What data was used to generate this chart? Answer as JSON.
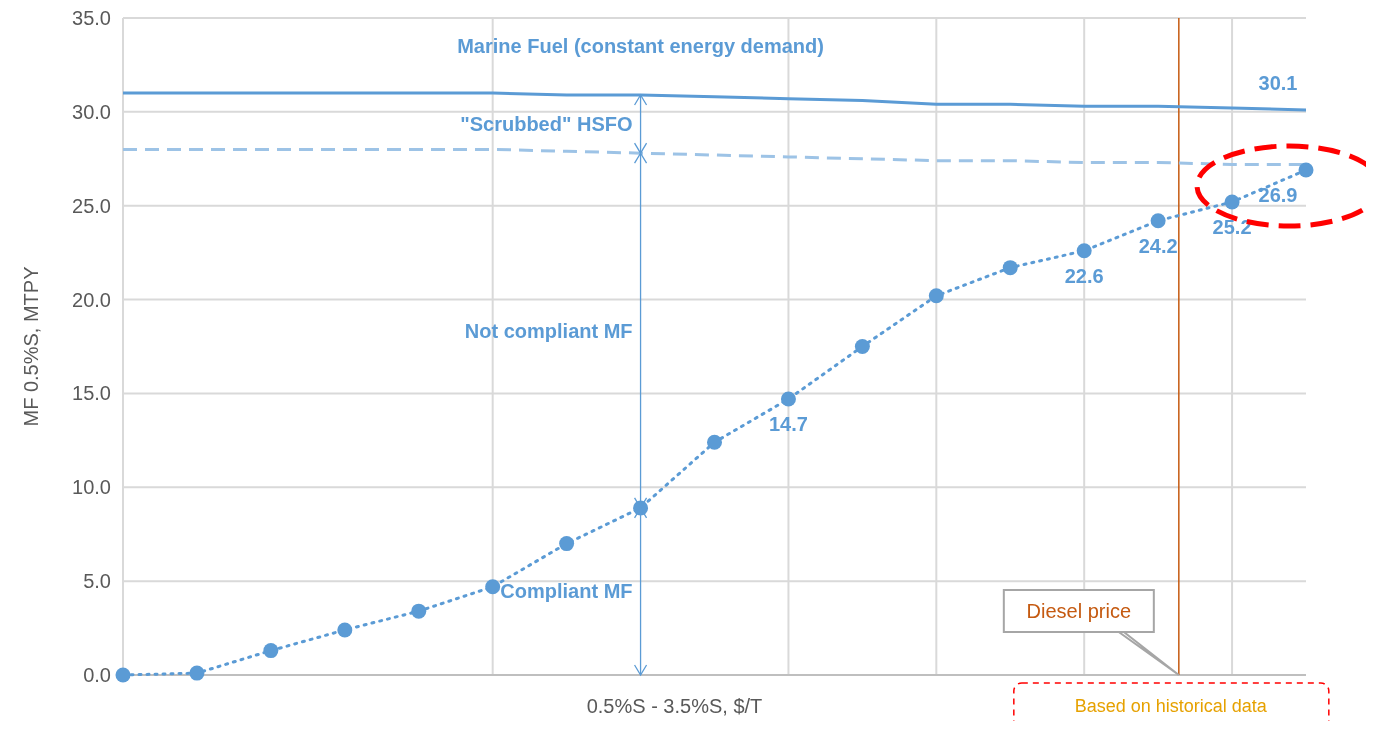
{
  "chart_data": {
    "type": "line",
    "xlabel": "0.5%S - 3.5%S, $/T",
    "ylabel": "MF 0.5%S, MTPY",
    "categories": [
      null,
      null,
      null,
      null,
      null,
      null,
      null,
      null,
      null,
      null,
      null,
      null,
      null,
      null,
      null,
      null,
      null
    ],
    "ylim": [
      0,
      35
    ],
    "yticks": [
      {
        "value": 0,
        "label": "0.0"
      },
      {
        "value": 5,
        "label": "5.0"
      },
      {
        "value": 10,
        "label": "10.0"
      },
      {
        "value": 15,
        "label": "15.0"
      },
      {
        "value": 20,
        "label": "20.0"
      },
      {
        "value": 25,
        "label": "25.0"
      },
      {
        "value": 30,
        "label": "30.0"
      },
      {
        "value": 35,
        "label": "35.0"
      }
    ],
    "grid": true,
    "legend": false,
    "series": [
      {
        "name": "Marine Fuel (constant energy demand)",
        "color": "#5b9bd5",
        "line_style": "solid",
        "marker": "none",
        "values": [
          31.0,
          31.0,
          31.0,
          31.0,
          31.0,
          31.0,
          30.9,
          30.9,
          30.8,
          30.7,
          30.6,
          30.4,
          30.4,
          30.3,
          30.3,
          30.2,
          30.1
        ],
        "value_labels": [
          null,
          null,
          null,
          null,
          null,
          null,
          null,
          null,
          null,
          null,
          null,
          null,
          null,
          null,
          null,
          null,
          "30.1"
        ]
      },
      {
        "color": "#9dc3e6",
        "line_style": "dashed",
        "marker": "none",
        "values": [
          28.0,
          28.0,
          28.0,
          28.0,
          28.0,
          28.0,
          27.9,
          27.8,
          27.7,
          27.6,
          27.5,
          27.4,
          27.4,
          27.3,
          27.3,
          27.2,
          27.2
        ]
      },
      {
        "color": "#5b9bd5",
        "line_style": "dotted",
        "marker": "circle",
        "values": [
          0,
          0.1,
          1.3,
          2.4,
          3.4,
          4.7,
          7.0,
          8.9,
          12.4,
          14.7,
          17.5,
          20.2,
          21.7,
          22.6,
          24.2,
          25.2,
          26.9
        ],
        "value_labels": [
          null,
          null,
          null,
          null,
          null,
          null,
          null,
          null,
          null,
          "14.7",
          null,
          null,
          null,
          "22.6",
          "24.2",
          "25.2",
          "26.9"
        ]
      }
    ],
    "annotations": [
      "\"Scrubbed\" HSFO",
      "Not compliant MF",
      "Compliant MF",
      "Diesel price",
      "Based on historical data"
    ]
  }
}
